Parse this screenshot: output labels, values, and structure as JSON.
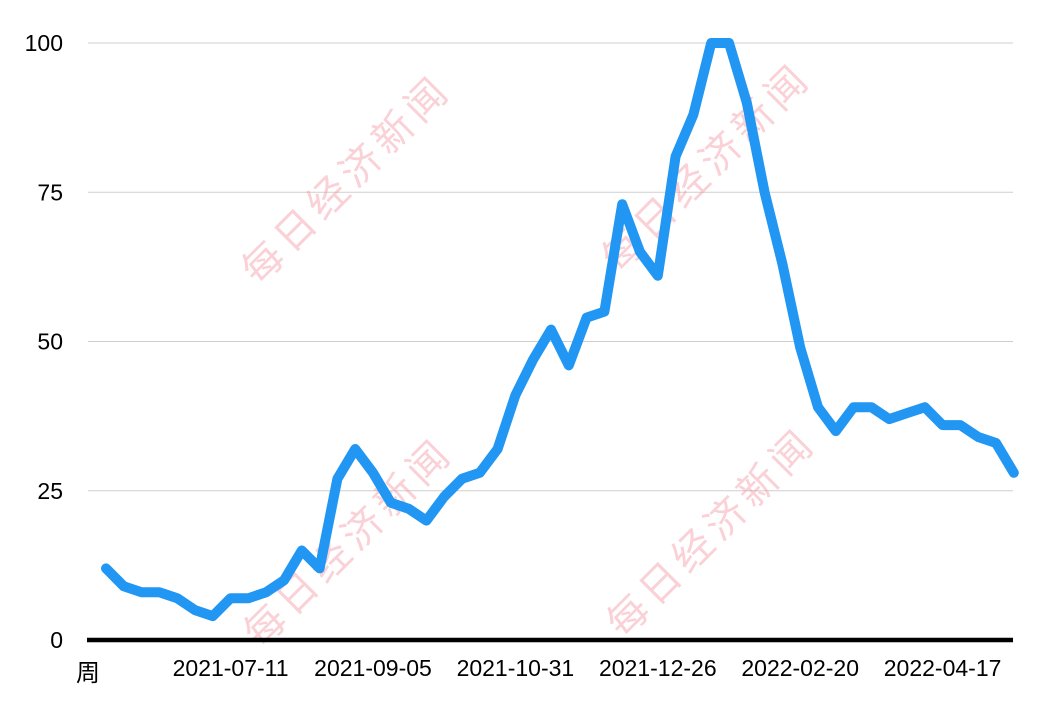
{
  "chart_data": {
    "type": "line",
    "title": "",
    "xlabel": "周",
    "ylabel": "",
    "ylim": [
      0,
      100
    ],
    "y_ticks": [
      0,
      25,
      50,
      75,
      100
    ],
    "x_tick_labels": [
      "2021-07-11",
      "2021-09-05",
      "2021-10-31",
      "2021-12-26",
      "2022-02-20",
      "2022-04-17"
    ],
    "x_tick_indices": [
      7,
      15,
      23,
      31,
      39,
      47
    ],
    "grid": "horizontal",
    "legend_position": "none",
    "x": [
      "2021-05-23",
      "2021-05-30",
      "2021-06-06",
      "2021-06-13",
      "2021-06-20",
      "2021-06-27",
      "2021-07-04",
      "2021-07-11",
      "2021-07-18",
      "2021-07-25",
      "2021-08-01",
      "2021-08-08",
      "2021-08-15",
      "2021-08-22",
      "2021-08-29",
      "2021-09-05",
      "2021-09-12",
      "2021-09-19",
      "2021-09-26",
      "2021-10-03",
      "2021-10-10",
      "2021-10-17",
      "2021-10-24",
      "2021-10-31",
      "2021-11-07",
      "2021-11-14",
      "2021-11-21",
      "2021-11-28",
      "2021-12-05",
      "2021-12-12",
      "2021-12-19",
      "2021-12-26",
      "2022-01-02",
      "2022-01-09",
      "2022-01-16",
      "2022-01-23",
      "2022-01-30",
      "2022-02-06",
      "2022-02-13",
      "2022-02-20",
      "2022-02-27",
      "2022-03-06",
      "2022-03-13",
      "2022-03-20",
      "2022-03-27",
      "2022-04-03",
      "2022-04-10",
      "2022-04-17",
      "2022-04-24",
      "2022-05-01",
      "2022-05-08",
      "2022-05-15"
    ],
    "values": [
      12,
      9,
      8,
      8,
      7,
      5,
      4,
      7,
      7,
      8,
      10,
      15,
      12,
      27,
      32,
      28,
      23,
      22,
      20,
      24,
      27,
      28,
      32,
      41,
      47,
      52,
      46,
      54,
      55,
      73,
      65,
      61,
      81,
      88,
      100,
      100,
      90,
      75,
      63,
      49,
      39,
      35,
      39,
      39,
      37,
      38,
      39,
      36,
      36,
      34,
      33,
      28
    ],
    "colors": {
      "line": "#2196F3",
      "grid": "#CFCFCF",
      "axis": "#000000",
      "tick_text": "#000000",
      "watermark": "#F2939E"
    },
    "watermark_text": "每日经济新闻"
  }
}
